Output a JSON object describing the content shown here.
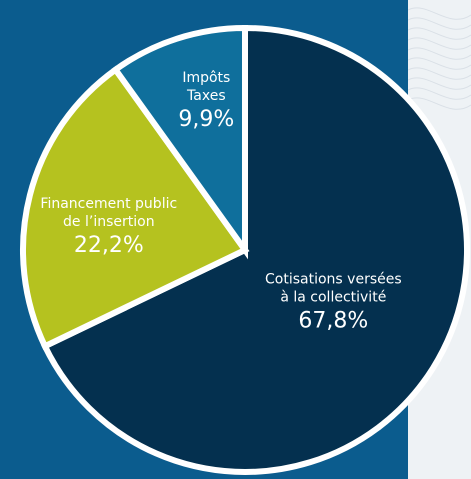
{
  "chart_data": {
    "type": "pie",
    "title": "",
    "slices": [
      {
        "label_lines": [
          "Cotisations versées",
          "à la collectivité"
        ],
        "value": 67.8,
        "value_label": "67,8%",
        "color": "#04304f"
      },
      {
        "label_lines": [
          "Financement public",
          "de l’insertion"
        ],
        "value": 22.2,
        "value_label": "22,2%",
        "color": "#b5c21f"
      },
      {
        "label_lines": [
          "Impôts",
          "Taxes"
        ],
        "value": 9.9,
        "value_label": "9,9%",
        "color": "#0f6f9c"
      }
    ],
    "start_angle_deg": 0,
    "direction": "clockwise"
  },
  "colors": {
    "background_panel": "#0b5c8e",
    "background_right": "#eef2f5",
    "separator": "#ffffff",
    "label_text": "#ffffff"
  }
}
